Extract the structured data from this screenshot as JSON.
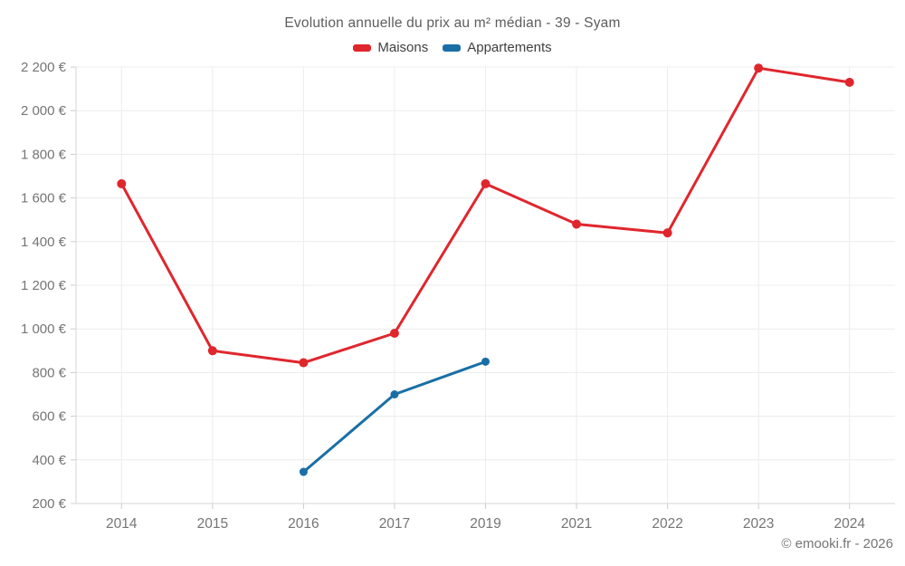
{
  "title": "Evolution annuelle du prix au m² médian - 39 - Syam",
  "footer": "© emooki.fr - 2026",
  "colors": {
    "maisons": "#e0262d",
    "appartements": "#196fa5",
    "gridline": "#ececec",
    "axis_line": "#d6d6d6",
    "tick": "#cccccc",
    "axis_text": "#757575",
    "title_text": "#5d5d5d",
    "legend_text": "#3f3f3f"
  },
  "chart_data": {
    "type": "line",
    "title": "Evolution annuelle du prix au m² médian - 39 - Syam",
    "categories": [
      "2014",
      "2015",
      "2016",
      "2017",
      "2019",
      "2021",
      "2022",
      "2023",
      "2024"
    ],
    "series": [
      {
        "name": "Maisons",
        "color": "#e0262d",
        "marker_radius": 5,
        "values": [
          1665,
          900,
          845,
          980,
          1665,
          1480,
          1440,
          2195,
          2130
        ]
      },
      {
        "name": "Appartements",
        "color": "#196fa5",
        "marker_radius": 4.5,
        "values": [
          null,
          null,
          345,
          700,
          850,
          null,
          null,
          null,
          null
        ]
      }
    ],
    "ylim": [
      200,
      2200
    ],
    "y_tick_step": 200,
    "y_tick_labels": [
      "200 €",
      "400 €",
      "600 €",
      "800 €",
      "1 000 €",
      "1 200 €",
      "1 400 €",
      "1 600 €",
      "1 800 €",
      "2 000 €",
      "2 200 €"
    ],
    "grid": true,
    "legend_position": "top",
    "annotation": "© emooki.fr - 2026"
  }
}
